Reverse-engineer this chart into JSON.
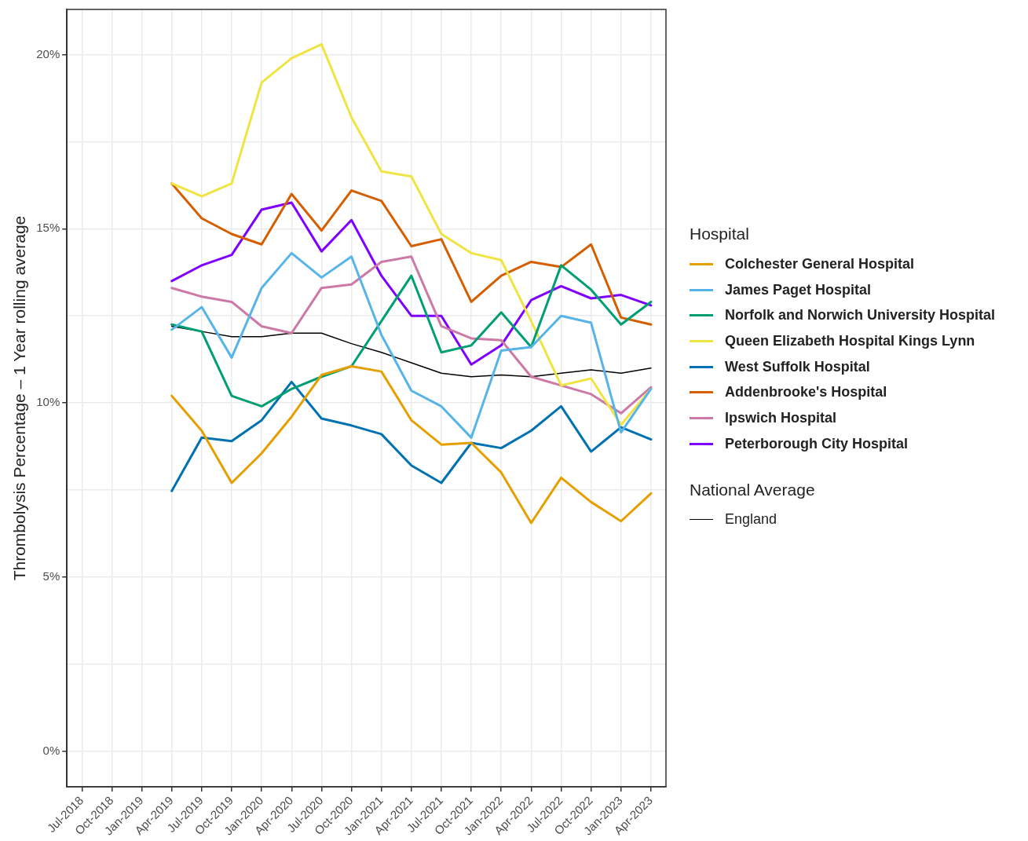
{
  "chart_data": {
    "type": "line",
    "ylabel": "Thrombolysis Percentage – 1 Year rolling average",
    "legend_title": "Hospital",
    "annotations": [
      "National Average"
    ],
    "legend": "right",
    "grid": true,
    "marker": "none",
    "line_style": "solid",
    "categories": [
      "Jul-2018",
      "Oct-2018",
      "Jan-2019",
      "Apr-2019",
      "Jul-2019",
      "Oct-2019",
      "Jan-2020",
      "Apr-2020",
      "Jul-2020",
      "Oct-2020",
      "Jan-2021",
      "Apr-2021",
      "Jul-2021",
      "Oct-2021",
      "Jan-2022",
      "Apr-2022",
      "Jul-2022",
      "Oct-2022",
      "Jan-2023",
      "Apr-2023"
    ],
    "ylim": [
      -1.03,
      21.3
    ],
    "yticks": [
      {
        "value": 0,
        "label": "0%"
      },
      {
        "value": 2.5,
        "label": null
      },
      {
        "value": 5,
        "label": "5%"
      },
      {
        "value": 7.5,
        "label": null
      },
      {
        "value": 10,
        "label": "10%"
      },
      {
        "value": 12.5,
        "label": null
      },
      {
        "value": 15,
        "label": "15%"
      },
      {
        "value": 17.5,
        "label": null
      },
      {
        "value": 20,
        "label": "20%"
      }
    ],
    "series": [
      {
        "name": "Colchester General Hospital",
        "color": "#e69f00",
        "values": [
          null,
          null,
          null,
          10.2,
          9.2,
          7.7,
          8.55,
          9.6,
          10.8,
          11.05,
          10.9,
          9.5,
          8.8,
          8.85,
          8.0,
          6.55,
          7.85,
          7.15,
          6.6,
          7.4
        ]
      },
      {
        "name": "James Paget Hospital",
        "color": "#56b4e9",
        "values": [
          null,
          null,
          null,
          12.1,
          12.75,
          11.3,
          13.3,
          14.3,
          13.6,
          14.2,
          11.95,
          10.35,
          9.9,
          9.0,
          11.5,
          11.6,
          12.5,
          12.3,
          9.15,
          10.4
        ]
      },
      {
        "name": "Norfolk and Norwich University Hospital",
        "color": "#009e73",
        "values": [
          null,
          null,
          null,
          12.25,
          12.05,
          10.2,
          9.9,
          10.4,
          10.75,
          11.05,
          12.35,
          13.65,
          11.45,
          11.65,
          12.6,
          11.6,
          13.95,
          13.25,
          12.25,
          12.9
        ]
      },
      {
        "name": "Queen Elizabeth Hospital Kings Lynn",
        "color": "#f0e442",
        "values": [
          null,
          null,
          null,
          16.3,
          15.93,
          16.3,
          19.2,
          19.9,
          20.3,
          18.2,
          16.65,
          16.5,
          14.85,
          14.3,
          14.1,
          12.35,
          10.5,
          10.7,
          9.37,
          10.4
        ]
      },
      {
        "name": "West Suffolk Hospital",
        "color": "#0072b2",
        "values": [
          null,
          null,
          null,
          7.47,
          9.0,
          8.9,
          9.5,
          10.6,
          9.55,
          9.35,
          9.1,
          8.2,
          7.7,
          8.85,
          8.7,
          9.2,
          9.9,
          8.6,
          9.3,
          8.95
        ]
      },
      {
        "name": "Addenbrooke's Hospital",
        "color": "#d55e00",
        "values": [
          null,
          null,
          null,
          16.3,
          15.3,
          14.85,
          14.55,
          16.0,
          14.95,
          16.1,
          15.8,
          14.5,
          14.7,
          12.9,
          13.65,
          14.05,
          13.9,
          14.55,
          12.45,
          12.25
        ]
      },
      {
        "name": "Ipswich Hospital",
        "color": "#cc79a7",
        "values": [
          null,
          null,
          null,
          13.3,
          13.05,
          12.9,
          12.2,
          12.0,
          13.3,
          13.4,
          14.05,
          14.2,
          12.2,
          11.85,
          11.8,
          10.75,
          10.5,
          10.25,
          9.7,
          10.45
        ]
      },
      {
        "name": "Peterborough City Hospital",
        "color": "#7f00ff",
        "values": [
          null,
          null,
          null,
          13.5,
          13.95,
          14.25,
          15.55,
          15.75,
          14.35,
          15.25,
          13.65,
          12.5,
          12.5,
          11.1,
          11.65,
          12.95,
          13.35,
          13.0,
          13.1,
          12.8
        ]
      },
      {
        "name": "England",
        "color": "#000000",
        "values": [
          null,
          null,
          null,
          12.2,
          12.05,
          11.9,
          11.9,
          12.0,
          12.0,
          11.7,
          11.45,
          11.15,
          10.85,
          10.75,
          10.8,
          10.75,
          10.85,
          10.95,
          10.85,
          11.0
        ]
      }
    ]
  }
}
